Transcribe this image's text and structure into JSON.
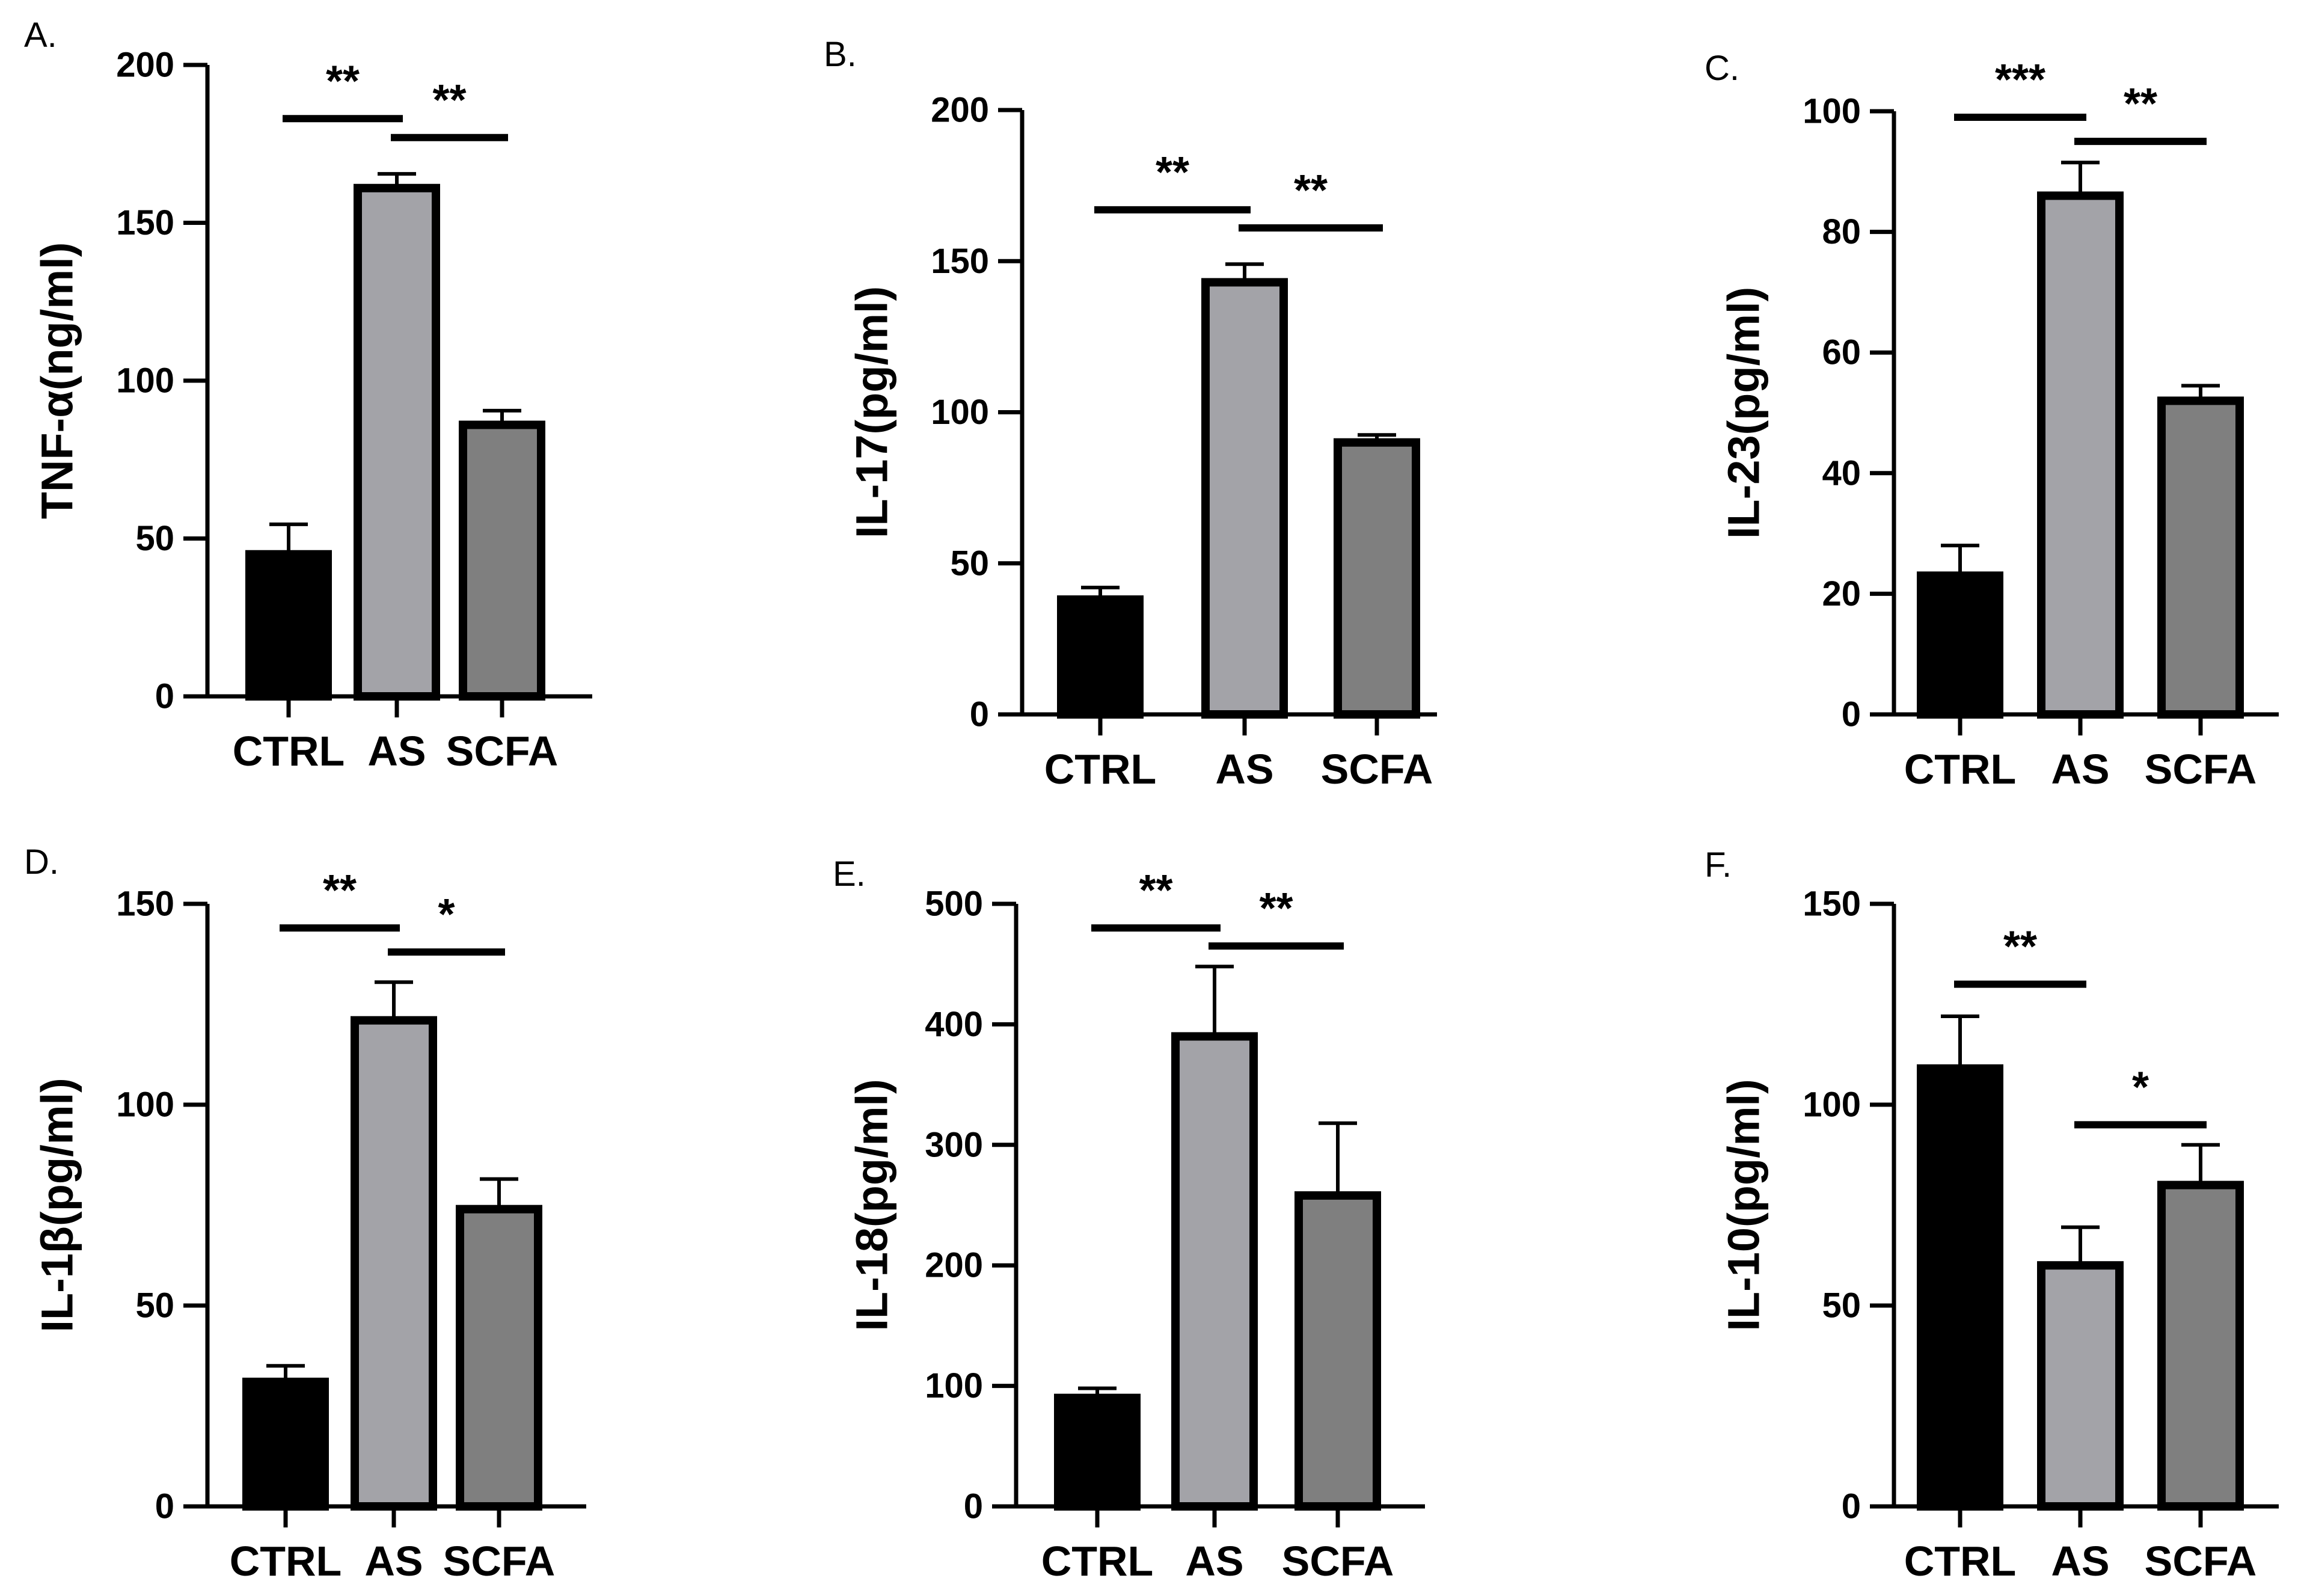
{
  "chart_data": [
    {
      "panel": "A.",
      "type": "bar",
      "ylabel": "TNF-α(ng/ml)",
      "categories": [
        "CTRL",
        "AS",
        "SCFA"
      ],
      "values": [
        45,
        161,
        86
      ],
      "errors": [
        9.5,
        4.5,
        4.5
      ],
      "ylim": [
        0,
        200
      ],
      "yticks": [
        0,
        50,
        100,
        150,
        200
      ],
      "significance": [
        {
          "from": 0,
          "to": 1,
          "label": "**",
          "y": 183
        },
        {
          "from": 1,
          "to": 2,
          "label": "**",
          "y": 177
        }
      ]
    },
    {
      "panel": "B.",
      "type": "bar",
      "ylabel": "IL-17(pg/ml)",
      "categories": [
        "CTRL",
        "AS",
        "SCFA"
      ],
      "values": [
        38,
        143,
        90
      ],
      "errors": [
        4,
        6,
        2.5
      ],
      "ylim": [
        0,
        200
      ],
      "yticks": [
        0,
        50,
        100,
        150,
        200
      ],
      "significance": [
        {
          "from": 0,
          "to": 1,
          "label": "**",
          "y": 167
        },
        {
          "from": 1,
          "to": 2,
          "label": "**",
          "y": 161
        }
      ]
    },
    {
      "panel": "C.",
      "type": "bar",
      "ylabel": "IL-23(pg/ml)",
      "categories": [
        "CTRL",
        "AS",
        "SCFA"
      ],
      "values": [
        23,
        86,
        52
      ],
      "errors": [
        5,
        5.5,
        2.5
      ],
      "ylim": [
        0,
        100
      ],
      "yticks": [
        0,
        20,
        40,
        60,
        80,
        100
      ],
      "significance": [
        {
          "from": 0,
          "to": 1,
          "label": "***",
          "y": 99
        },
        {
          "from": 1,
          "to": 2,
          "label": "**",
          "y": 95
        }
      ]
    },
    {
      "panel": "D.",
      "type": "bar",
      "ylabel": "IL-1β(pg/ml)",
      "categories": [
        "CTRL",
        "AS",
        "SCFA"
      ],
      "values": [
        31,
        121,
        74
      ],
      "errors": [
        4,
        9.5,
        7.5
      ],
      "ylim": [
        0,
        150
      ],
      "yticks": [
        0,
        50,
        100,
        150
      ],
      "significance": [
        {
          "from": 0,
          "to": 1,
          "label": "**",
          "y": 144
        },
        {
          "from": 1,
          "to": 2,
          "label": "*",
          "y": 138
        }
      ]
    },
    {
      "panel": "E.",
      "type": "bar",
      "ylabel": "IL-18(pg/ml)",
      "categories": [
        "CTRL",
        "AS",
        "SCFA"
      ],
      "values": [
        90,
        390,
        258
      ],
      "errors": [
        8,
        58,
        60
      ],
      "ylim": [
        0,
        500
      ],
      "yticks": [
        0,
        100,
        200,
        300,
        400,
        500
      ],
      "significance": [
        {
          "from": 0,
          "to": 1,
          "label": "**",
          "y": 480
        },
        {
          "from": 1,
          "to": 2,
          "label": "**",
          "y": 465
        }
      ]
    },
    {
      "panel": "F.",
      "type": "bar",
      "ylabel": "IL-10(pg/ml)",
      "categories": [
        "CTRL",
        "AS",
        "SCFA"
      ],
      "values": [
        109,
        60,
        80
      ],
      "errors": [
        13,
        9.5,
        10
      ],
      "ylim": [
        0,
        150
      ],
      "yticks": [
        0,
        50,
        100,
        150
      ],
      "significance": [
        {
          "from": 0,
          "to": 1,
          "label": "**",
          "y": 130
        },
        {
          "from": 1,
          "to": 2,
          "label": "*",
          "y": 95
        }
      ]
    }
  ],
  "colors": {
    "bars": [
      "#000000",
      "#a3a3a8",
      "#7f7f7f"
    ],
    "axis": "#000000"
  }
}
